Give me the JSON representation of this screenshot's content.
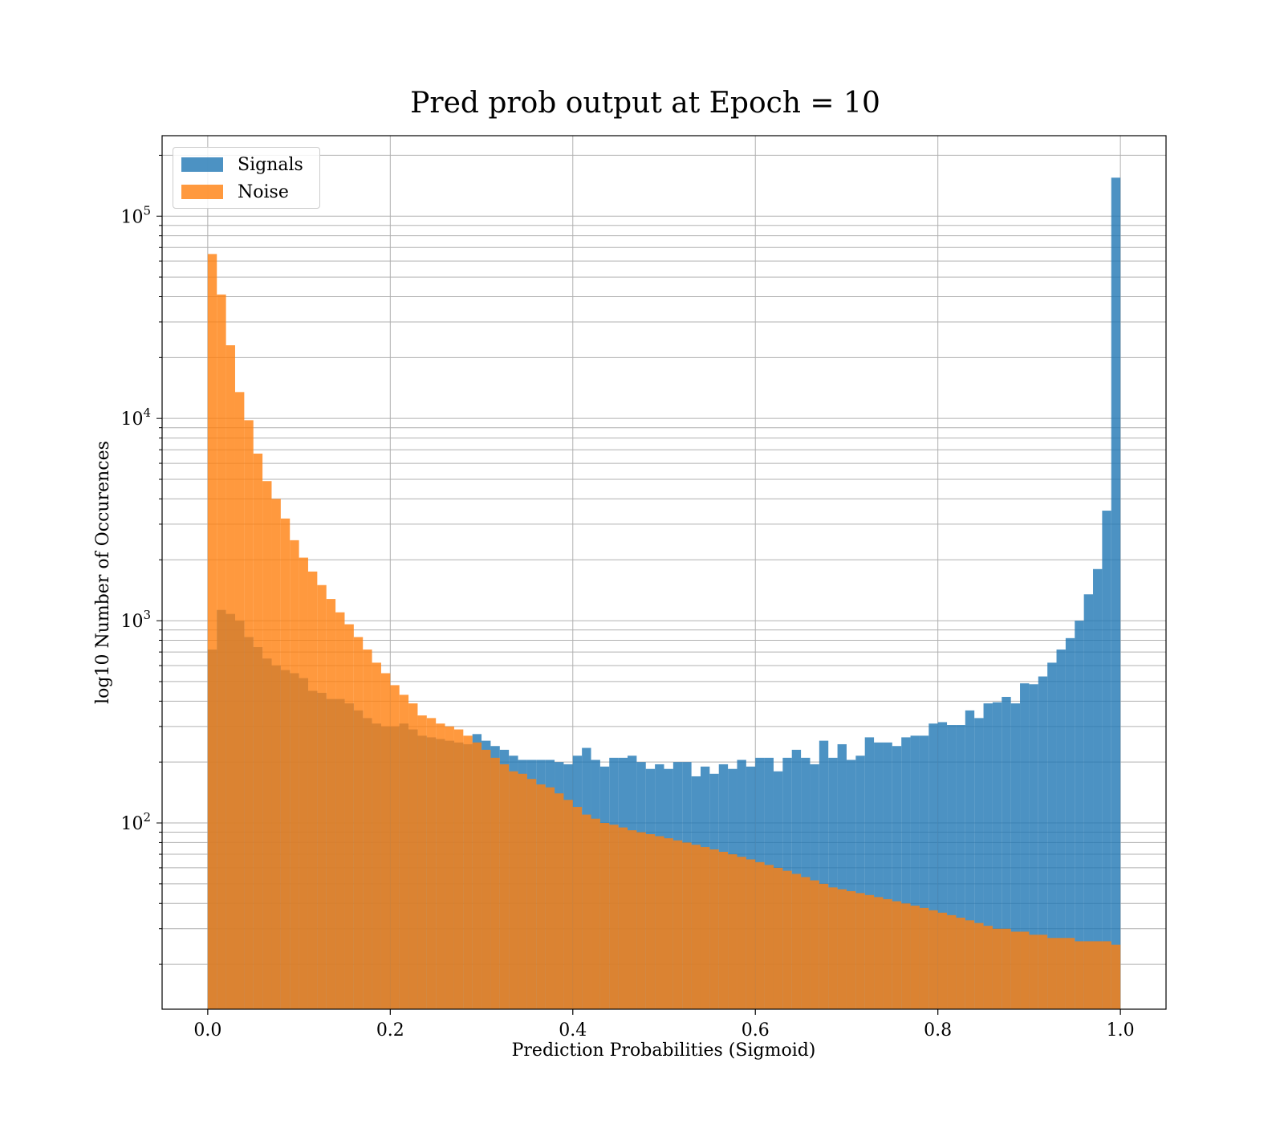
{
  "chart_data": {
    "type": "bar",
    "title": "Pred prob output at Epoch = 10",
    "xlabel": "Prediction Probabilities (Sigmoid)",
    "ylabel": "log10 Number of Occurences",
    "yscale": "log",
    "xlim": [
      -0.05,
      1.05
    ],
    "ylim": [
      12,
      250000
    ],
    "grid": true,
    "legend_placement": "upper-left",
    "x_ticks": [
      "0.0",
      "0.2",
      "0.4",
      "0.6",
      "0.8",
      "1.0"
    ],
    "y_ticks": [
      {
        "base": "10",
        "exp": "2"
      },
      {
        "base": "10",
        "exp": "3"
      },
      {
        "base": "10",
        "exp": "4"
      },
      {
        "base": "10",
        "exp": "5"
      }
    ],
    "bins": 100,
    "bin_range": [
      0,
      1
    ],
    "series": [
      {
        "name": "Signals",
        "color": "#1f77b4",
        "values": [
          720,
          1130,
          1080,
          1000,
          830,
          740,
          650,
          600,
          570,
          550,
          520,
          450,
          440,
          410,
          410,
          390,
          360,
          330,
          310,
          300,
          300,
          310,
          290,
          270,
          265,
          260,
          255,
          250,
          245,
          275,
          255,
          240,
          230,
          215,
          205,
          205,
          205,
          205,
          200,
          195,
          215,
          235,
          205,
          190,
          210,
          210,
          215,
          200,
          185,
          195,
          185,
          200,
          200,
          170,
          190,
          175,
          195,
          185,
          205,
          190,
          210,
          210,
          180,
          210,
          230,
          210,
          195,
          255,
          210,
          245,
          205,
          215,
          265,
          250,
          250,
          240,
          265,
          270,
          270,
          310,
          315,
          305,
          305,
          360,
          330,
          390,
          395,
          420,
          390,
          490,
          485,
          530,
          620,
          720,
          820,
          1000,
          1350,
          1800,
          3500,
          155000
        ]
      },
      {
        "name": "Noise",
        "color": "#ff7f0e",
        "values": [
          65000,
          41000,
          23000,
          13500,
          9800,
          6700,
          4900,
          4000,
          3200,
          2500,
          2050,
          1750,
          1500,
          1280,
          1100,
          960,
          830,
          720,
          620,
          550,
          480,
          430,
          390,
          340,
          330,
          310,
          300,
          290,
          270,
          250,
          230,
          210,
          195,
          180,
          175,
          165,
          155,
          150,
          140,
          130,
          120,
          110,
          105,
          100,
          98,
          95,
          92,
          90,
          88,
          86,
          84,
          82,
          80,
          78,
          76,
          74,
          72,
          70,
          68,
          66,
          64,
          62,
          60,
          58,
          56,
          54,
          52,
          50,
          48,
          47,
          46,
          45,
          44,
          43,
          42,
          41,
          40,
          39,
          38,
          37,
          36,
          35,
          34,
          33,
          32,
          31,
          30,
          30,
          29,
          29,
          28,
          28,
          27,
          27,
          27,
          26,
          26,
          26,
          26,
          25
        ]
      }
    ]
  }
}
